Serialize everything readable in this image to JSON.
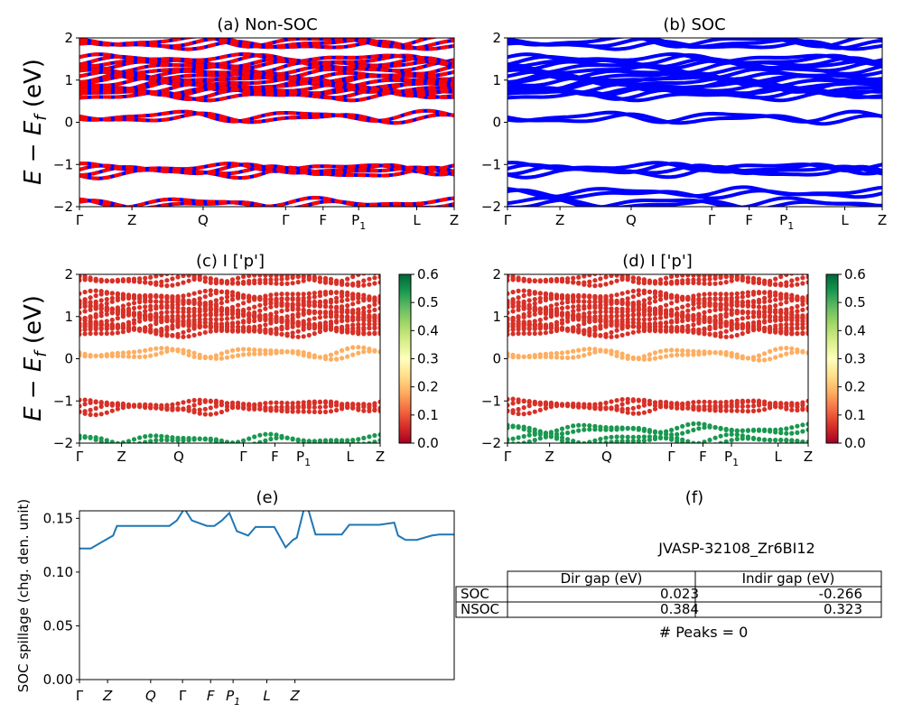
{
  "ylabel": "E − E",
  "ylabel_sub": "f",
  "ylabel_unit": " (eV)",
  "kpath": [
    "Γ",
    "Z",
    "Q",
    "Γ",
    "F",
    "P",
    "L",
    "Z"
  ],
  "kpath_sub_index": 5,
  "kpath_sub": "1",
  "panels": {
    "a": {
      "title": "(a) Non-SOC"
    },
    "b": {
      "title": "(b) SOC"
    },
    "c": {
      "title": "(c)  I ['p']"
    },
    "d": {
      "title": "(d) I ['p']"
    },
    "e": {
      "title": "(e)",
      "ylabel": "SOC spillage (chg. den. unit)"
    },
    "f": {
      "title": "(f)"
    }
  },
  "colorbar": {
    "ticks": [
      "0.0",
      "0.1",
      "0.2",
      "0.3",
      "0.4",
      "0.5",
      "0.6"
    ],
    "min": 0,
    "max": 0.6,
    "colormap": "RdYlGn"
  },
  "colors": {
    "soc_bands": "#0000ff",
    "nonsoc_bands": "#ff0000",
    "spillage": "#1f77b4"
  },
  "table": {
    "material": "JVASP-32108_Zr6BI12",
    "headers": [
      "Dir gap (eV)",
      "Indir gap (eV)"
    ],
    "rows": [
      {
        "label": "SOC",
        "dir": "0.023",
        "indir": "-0.266"
      },
      {
        "label": "NSOC",
        "dir": "0.384",
        "indir": "0.323"
      }
    ],
    "peaks": "# Peaks = 0"
  },
  "chart_data": [
    {
      "type": "line",
      "title": "(a) Non-SOC",
      "xlabel": "",
      "ylabel": "E − E_f (eV)",
      "ylim": [
        -2,
        2
      ],
      "yticks": [
        -2,
        -1,
        0,
        1,
        2
      ],
      "grid": false,
      "series_note_colors": [
        "red",
        "blue"
      ],
      "bands": [
        1.82,
        1.42,
        1.25,
        1.05,
        0.9,
        0.75,
        0.62,
        0.1,
        -1.12,
        -1.2,
        -1.95
      ]
    },
    {
      "type": "line",
      "title": "(b) SOC",
      "xlabel": "",
      "ylabel": "",
      "ylim": [
        -2,
        2
      ],
      "yticks": [
        -2,
        -1,
        0,
        1,
        2
      ],
      "grid": false,
      "bands": [
        1.82,
        1.42,
        1.25,
        1.05,
        0.9,
        0.75,
        0.62,
        0.08,
        -1.1,
        -1.18,
        -1.7,
        -1.95
      ]
    },
    {
      "type": "scatter",
      "title": "(c)  I ['p']",
      "ylim": [
        -2,
        2
      ],
      "colorbar_range": [
        0,
        0.6
      ]
    },
    {
      "type": "scatter",
      "title": "(d) I ['p']",
      "ylim": [
        -2,
        2
      ],
      "colorbar_range": [
        0,
        0.6
      ]
    },
    {
      "type": "line",
      "title": "(e)",
      "ylabel": "SOC spillage (chg. den. unit)",
      "ylim": [
        0,
        0.157
      ],
      "yticks": [
        0.0,
        0.05,
        0.1,
        0.15
      ],
      "x": [
        0,
        3,
        6,
        9,
        10,
        12,
        14,
        15,
        17,
        20,
        24,
        26,
        28,
        30,
        34,
        36,
        38,
        40,
        42,
        45,
        47,
        49,
        52,
        55,
        57,
        58,
        60,
        61,
        63,
        66,
        70,
        72,
        75,
        80,
        84,
        85,
        87,
        90,
        94,
        96,
        100
      ],
      "y": [
        0.122,
        0.122,
        0.128,
        0.134,
        0.143,
        0.143,
        0.143,
        0.143,
        0.143,
        0.143,
        0.143,
        0.148,
        0.159,
        0.148,
        0.143,
        0.143,
        0.148,
        0.155,
        0.138,
        0.134,
        0.142,
        0.142,
        0.142,
        0.123,
        0.13,
        0.132,
        0.16,
        0.159,
        0.135,
        0.135,
        0.135,
        0.144,
        0.144,
        0.144,
        0.146,
        0.134,
        0.13,
        0.13,
        0.134,
        0.135,
        0.135
      ]
    }
  ]
}
